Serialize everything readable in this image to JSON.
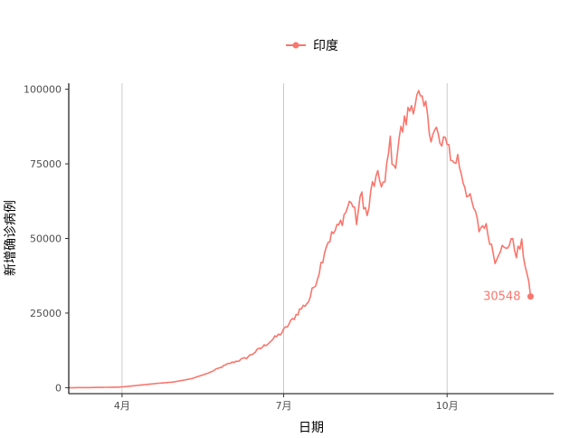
{
  "chart_data": {
    "type": "line",
    "xlabel": "日期",
    "ylabel": "新增确诊病例",
    "xlim": [
      "2020-03-02",
      "2020-11-30"
    ],
    "ylim": [
      -2000,
      102000
    ],
    "yticks": [
      0,
      25000,
      50000,
      75000,
      100000
    ],
    "ytick_labels": [
      "0",
      "25000",
      "50000",
      "75000",
      "100000"
    ],
    "xticks": [
      "2020-04-01",
      "2020-07-01",
      "2020-10-01"
    ],
    "xtick_labels": [
      "4月",
      "7月",
      "10月"
    ],
    "grid": "vertical major lines only",
    "legend_position": "top",
    "color": "#F8766D",
    "series": [
      {
        "name": "印度",
        "points": [
          [
            "2020-03-02",
            0
          ],
          [
            "2020-03-15",
            50
          ],
          [
            "2020-03-31",
            200
          ],
          [
            "2020-04-10",
            800
          ],
          [
            "2020-04-20",
            1400
          ],
          [
            "2020-04-30",
            1900
          ],
          [
            "2020-05-10",
            3000
          ],
          [
            "2020-05-20",
            5000
          ],
          [
            "2020-05-31",
            8000
          ],
          [
            "2020-06-10",
            10000
          ],
          [
            "2020-06-20",
            14000
          ],
          [
            "2020-06-30",
            18500
          ],
          [
            "2020-07-05",
            22000
          ],
          [
            "2020-07-10",
            26000
          ],
          [
            "2020-07-15",
            29000
          ],
          [
            "2020-07-20",
            37000
          ],
          [
            "2020-07-25",
            48000
          ],
          [
            "2020-07-28",
            51000
          ],
          [
            "2020-08-01",
            54000
          ],
          [
            "2020-08-05",
            59000
          ],
          [
            "2020-08-08",
            63000
          ],
          [
            "2020-08-11",
            56000
          ],
          [
            "2020-08-14",
            65000
          ],
          [
            "2020-08-17",
            57000
          ],
          [
            "2020-08-20",
            68000
          ],
          [
            "2020-08-23",
            70000
          ],
          [
            "2020-08-27",
            68000
          ],
          [
            "2020-08-30",
            83000
          ],
          [
            "2020-09-01",
            72000
          ],
          [
            "2020-09-04",
            84000
          ],
          [
            "2020-09-08",
            90000
          ],
          [
            "2020-09-11",
            95000
          ],
          [
            "2020-09-15",
            97000
          ],
          [
            "2020-09-17",
            94000
          ],
          [
            "2020-09-20",
            93000
          ],
          [
            "2020-09-22",
            84000
          ],
          [
            "2020-09-25",
            86000
          ],
          [
            "2020-09-28",
            80000
          ],
          [
            "2020-10-01",
            84000
          ],
          [
            "2020-10-04",
            75000
          ],
          [
            "2020-10-07",
            77000
          ],
          [
            "2020-10-10",
            70000
          ],
          [
            "2020-10-13",
            64000
          ],
          [
            "2020-10-16",
            60000
          ],
          [
            "2020-10-19",
            53000
          ],
          [
            "2020-10-22",
            55000
          ],
          [
            "2020-10-25",
            50000
          ],
          [
            "2020-10-28",
            43000
          ],
          [
            "2020-10-31",
            47000
          ],
          [
            "2020-11-03",
            46000
          ],
          [
            "2020-11-06",
            50000
          ],
          [
            "2020-11-09",
            45000
          ],
          [
            "2020-11-12",
            48000
          ],
          [
            "2020-11-15",
            38000
          ],
          [
            "2020-11-17",
            30548
          ]
        ],
        "last_value": 30548,
        "last_value_label": "30548"
      }
    ]
  },
  "legend": {
    "label": "印度",
    "color": "#F8766D"
  }
}
